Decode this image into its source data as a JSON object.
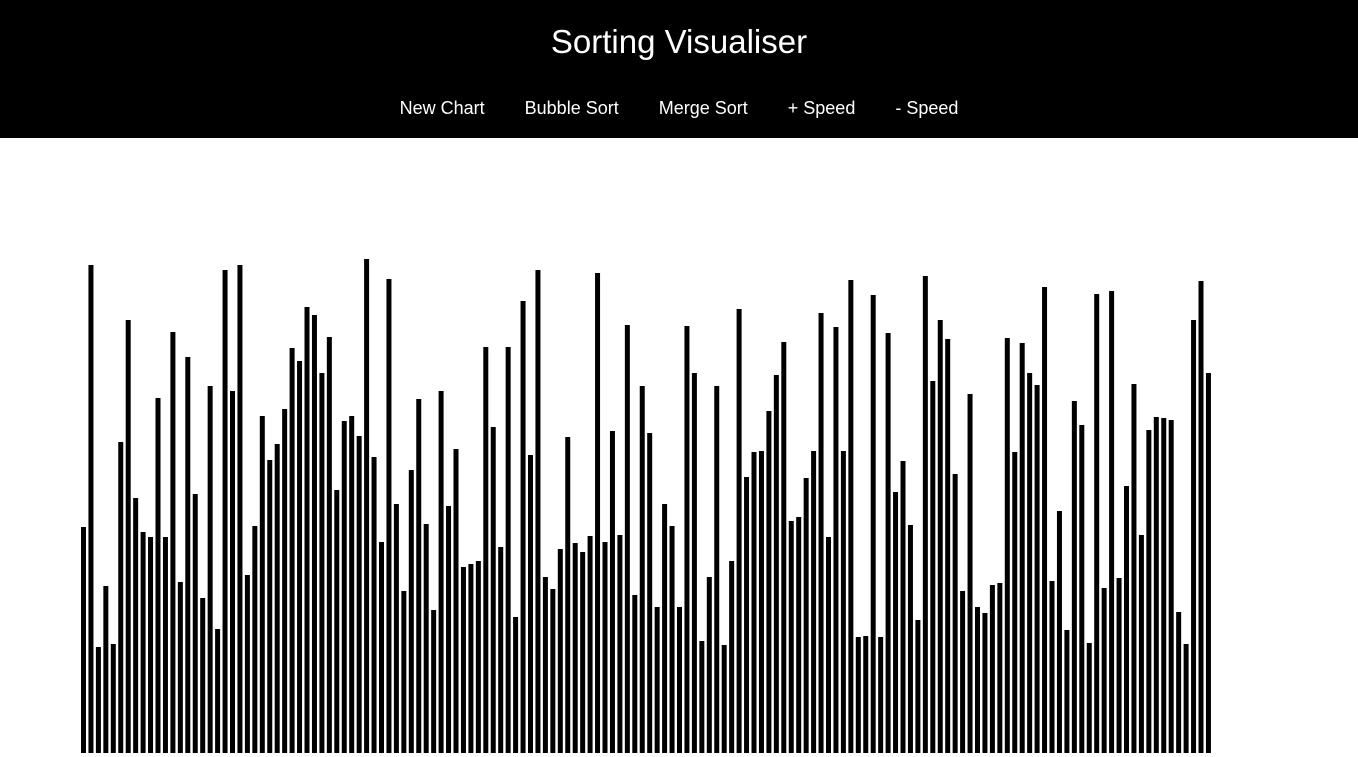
{
  "header": {
    "title": "Sorting Visualiser"
  },
  "nav": {
    "items": [
      {
        "label": "New Chart"
      },
      {
        "label": "Bubble Sort"
      },
      {
        "label": "Merge Sort"
      },
      {
        "label": "+ Speed"
      },
      {
        "label": "- Speed"
      }
    ]
  },
  "colors": {
    "header_bg": "#000000",
    "header_text": "#ffffff",
    "bar": "#000000",
    "background": "#ffffff"
  },
  "chart_data": {
    "type": "bar",
    "values": [
      226,
      488,
      106,
      167,
      109,
      311,
      433,
      255,
      221,
      216,
      355,
      216,
      421,
      171,
      396,
      259,
      155,
      367,
      124,
      483,
      362,
      488,
      178,
      227,
      337,
      293,
      309,
      344,
      405,
      392,
      446,
      438,
      380,
      416,
      263,
      332,
      337,
      317,
      494,
      296,
      211,
      474,
      249,
      162,
      283,
      354,
      229,
      143,
      362,
      247,
      304,
      186,
      189,
      192,
      406,
      326,
      206,
      406,
      136,
      452,
      298,
      483,
      176,
      164,
      204,
      316,
      210,
      201,
      217,
      480,
      211,
      322,
      218,
      428,
      158,
      367,
      320,
      146,
      249,
      227,
      146,
      427,
      380,
      112,
      176,
      367,
      108,
      192,
      444,
      276,
      301,
      302,
      342,
      378,
      411,
      232,
      236,
      275,
      302,
      440,
      216,
      426,
      302,
      473,
      116,
      117,
      458,
      116,
      420,
      261,
      292,
      228,
      133,
      477,
      372,
      433,
      414,
      279,
      162,
      359,
      146,
      140,
      168,
      170,
      415,
      301,
      410,
      380,
      368,
      466,
      172,
      242,
      123,
      352,
      328,
      110,
      459,
      165,
      462,
      175,
      267,
      369,
      218,
      323,
      336,
      335,
      333,
      141,
      109,
      433,
      472,
      380
    ]
  }
}
